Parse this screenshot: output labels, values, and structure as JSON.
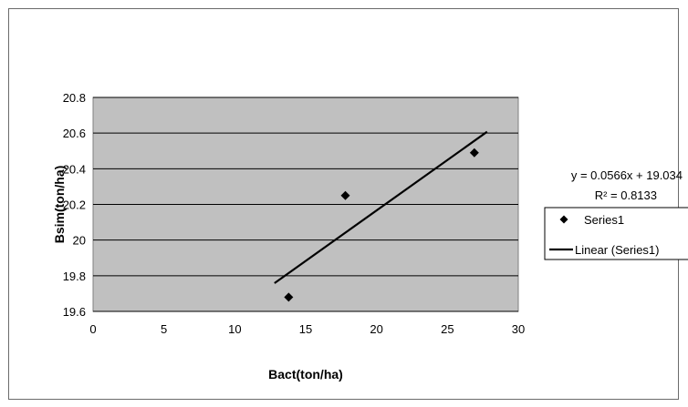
{
  "chart_data": {
    "type": "scatter",
    "xlabel": "Bact(ton/ha)",
    "ylabel": "Bsim(ton/ha)",
    "xlim": [
      0,
      30
    ],
    "ylim": [
      19.6,
      20.8
    ],
    "xticks": [
      0,
      5,
      10,
      15,
      20,
      25,
      30
    ],
    "yticks": [
      19.6,
      19.8,
      20,
      20.2,
      20.4,
      20.6,
      20.8
    ],
    "x_tick_labels": [
      "0",
      "5",
      "10",
      "15",
      "20",
      "25",
      "30"
    ],
    "y_tick_labels": [
      "19.6",
      "19.8",
      "20",
      "20.2",
      "20.4",
      "20.6",
      "20.8"
    ],
    "grid": "horizontal",
    "plot_background": "#c0c0c0",
    "series": [
      {
        "name": "Series1",
        "marker": "diamond",
        "color": "#000000",
        "points": [
          {
            "x": 13.8,
            "y": 19.68
          },
          {
            "x": 17.8,
            "y": 20.25
          },
          {
            "x": 26.9,
            "y": 20.49
          }
        ]
      }
    ],
    "trendline": {
      "name": "Linear (Series1)",
      "x_range": [
        12.8,
        27.8
      ],
      "slope": 0.0566,
      "intercept": 19.034,
      "color": "#000000"
    },
    "equation_text": "y = 0.0566x + 19.034",
    "r2_text": "R² = 0.8133",
    "legend_placement": "right",
    "legend": [
      {
        "label": "Series1",
        "symbol": "diamond"
      },
      {
        "label": "Linear (Series1)",
        "symbol": "line"
      }
    ]
  }
}
